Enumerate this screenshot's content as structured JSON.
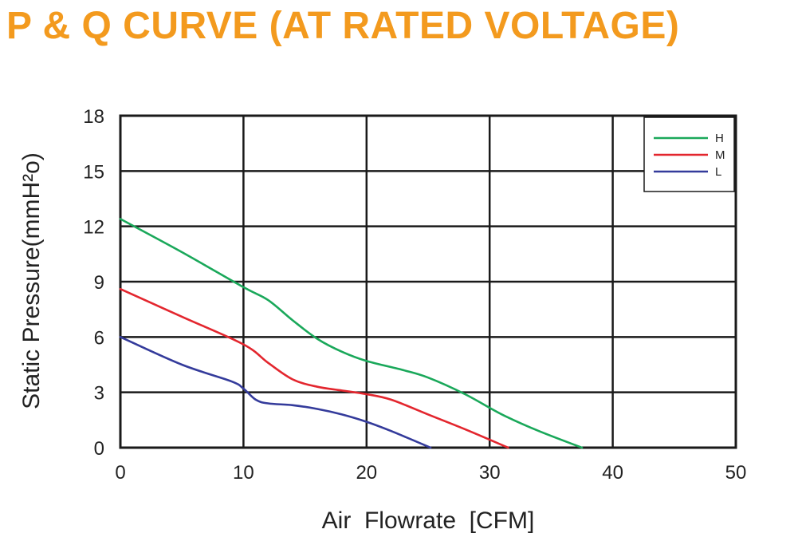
{
  "colors": {
    "title": "#f39a1e",
    "grid": "#1a1a1a",
    "H": "#1aa85a",
    "M": "#e3262e",
    "L": "#343b9b"
  },
  "chart_data": {
    "type": "line",
    "title": "P & Q CURVE (AT RATED VOLTAGE)",
    "xlabel": "Air  Flowrate  [CFM]",
    "ylabel": "Static Pressure(mmH²o)",
    "xlim": [
      0,
      50
    ],
    "ylim": [
      0,
      18
    ],
    "xticks": [
      "0",
      "10",
      "20",
      "30",
      "40",
      "50"
    ],
    "yticks": [
      "0",
      "3",
      "6",
      "9",
      "12",
      "15",
      "18"
    ],
    "grid": true,
    "legend_position": "top-right",
    "series": [
      {
        "name": "H",
        "color": "#1aa85a",
        "points": [
          [
            0,
            12.4
          ],
          [
            5,
            10.6
          ],
          [
            10,
            8.7
          ],
          [
            12,
            8.0
          ],
          [
            14,
            6.9
          ],
          [
            16,
            5.9
          ],
          [
            18,
            5.2
          ],
          [
            20,
            4.7
          ],
          [
            23,
            4.2
          ],
          [
            25,
            3.8
          ],
          [
            28,
            2.9
          ],
          [
            31,
            1.8
          ],
          [
            34,
            0.9
          ],
          [
            37.5,
            0
          ]
        ]
      },
      {
        "name": "M",
        "color": "#e3262e",
        "points": [
          [
            0,
            8.6
          ],
          [
            5,
            7.1
          ],
          [
            10,
            5.6
          ],
          [
            12,
            4.6
          ],
          [
            14,
            3.7
          ],
          [
            16,
            3.3
          ],
          [
            18,
            3.1
          ],
          [
            20,
            2.9
          ],
          [
            22,
            2.6
          ],
          [
            25,
            1.8
          ],
          [
            28,
            1.0
          ],
          [
            31.5,
            0
          ]
        ]
      },
      {
        "name": "L",
        "color": "#343b9b",
        "points": [
          [
            0,
            6.0
          ],
          [
            5,
            4.5
          ],
          [
            9,
            3.6
          ],
          [
            10,
            3.2
          ],
          [
            11,
            2.6
          ],
          [
            12,
            2.4
          ],
          [
            14,
            2.3
          ],
          [
            16,
            2.1
          ],
          [
            18,
            1.8
          ],
          [
            20,
            1.4
          ],
          [
            22,
            0.9
          ],
          [
            25.2,
            0
          ]
        ]
      }
    ]
  }
}
